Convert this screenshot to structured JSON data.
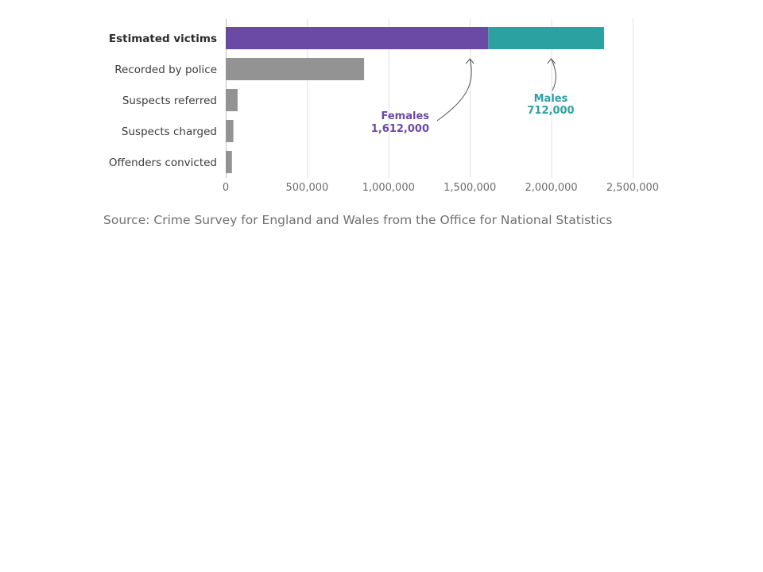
{
  "chart_data": {
    "type": "bar",
    "orientation": "horizontal",
    "categories": [
      "Estimated victims",
      "Recorded by police",
      "Suspects referred",
      "Suspects charged",
      "Offenders convicted"
    ],
    "highlight_category": "Estimated victims",
    "series": [
      {
        "name": "Females",
        "color": "#6a4aa5",
        "values": [
          1612000,
          null,
          null,
          null,
          null
        ]
      },
      {
        "name": "Males",
        "color": "#2ca1a1",
        "values": [
          712000,
          null,
          null,
          null,
          null
        ]
      },
      {
        "name": "",
        "color": "#939393",
        "values": [
          null,
          850000,
          73000,
          47000,
          38000
        ]
      }
    ],
    "annotations": [
      {
        "label": "Females",
        "value_text": "1,612,000",
        "color": "#6a4aa5"
      },
      {
        "label": "Males",
        "value_text": "712,000",
        "color": "#2ca1a1"
      }
    ],
    "xlim": [
      0,
      2500000
    ],
    "xticks": [
      0,
      500000,
      1000000,
      1500000,
      2000000,
      2500000
    ],
    "xtick_labels": [
      "0",
      "500,000",
      "1,000,000",
      "1,500,000",
      "2,000,000",
      "2,500,000"
    ],
    "grid": true,
    "xlabel": "",
    "ylabel": ""
  },
  "source": "Source: Crime Survey for England and Wales from the Office for National Statistics"
}
